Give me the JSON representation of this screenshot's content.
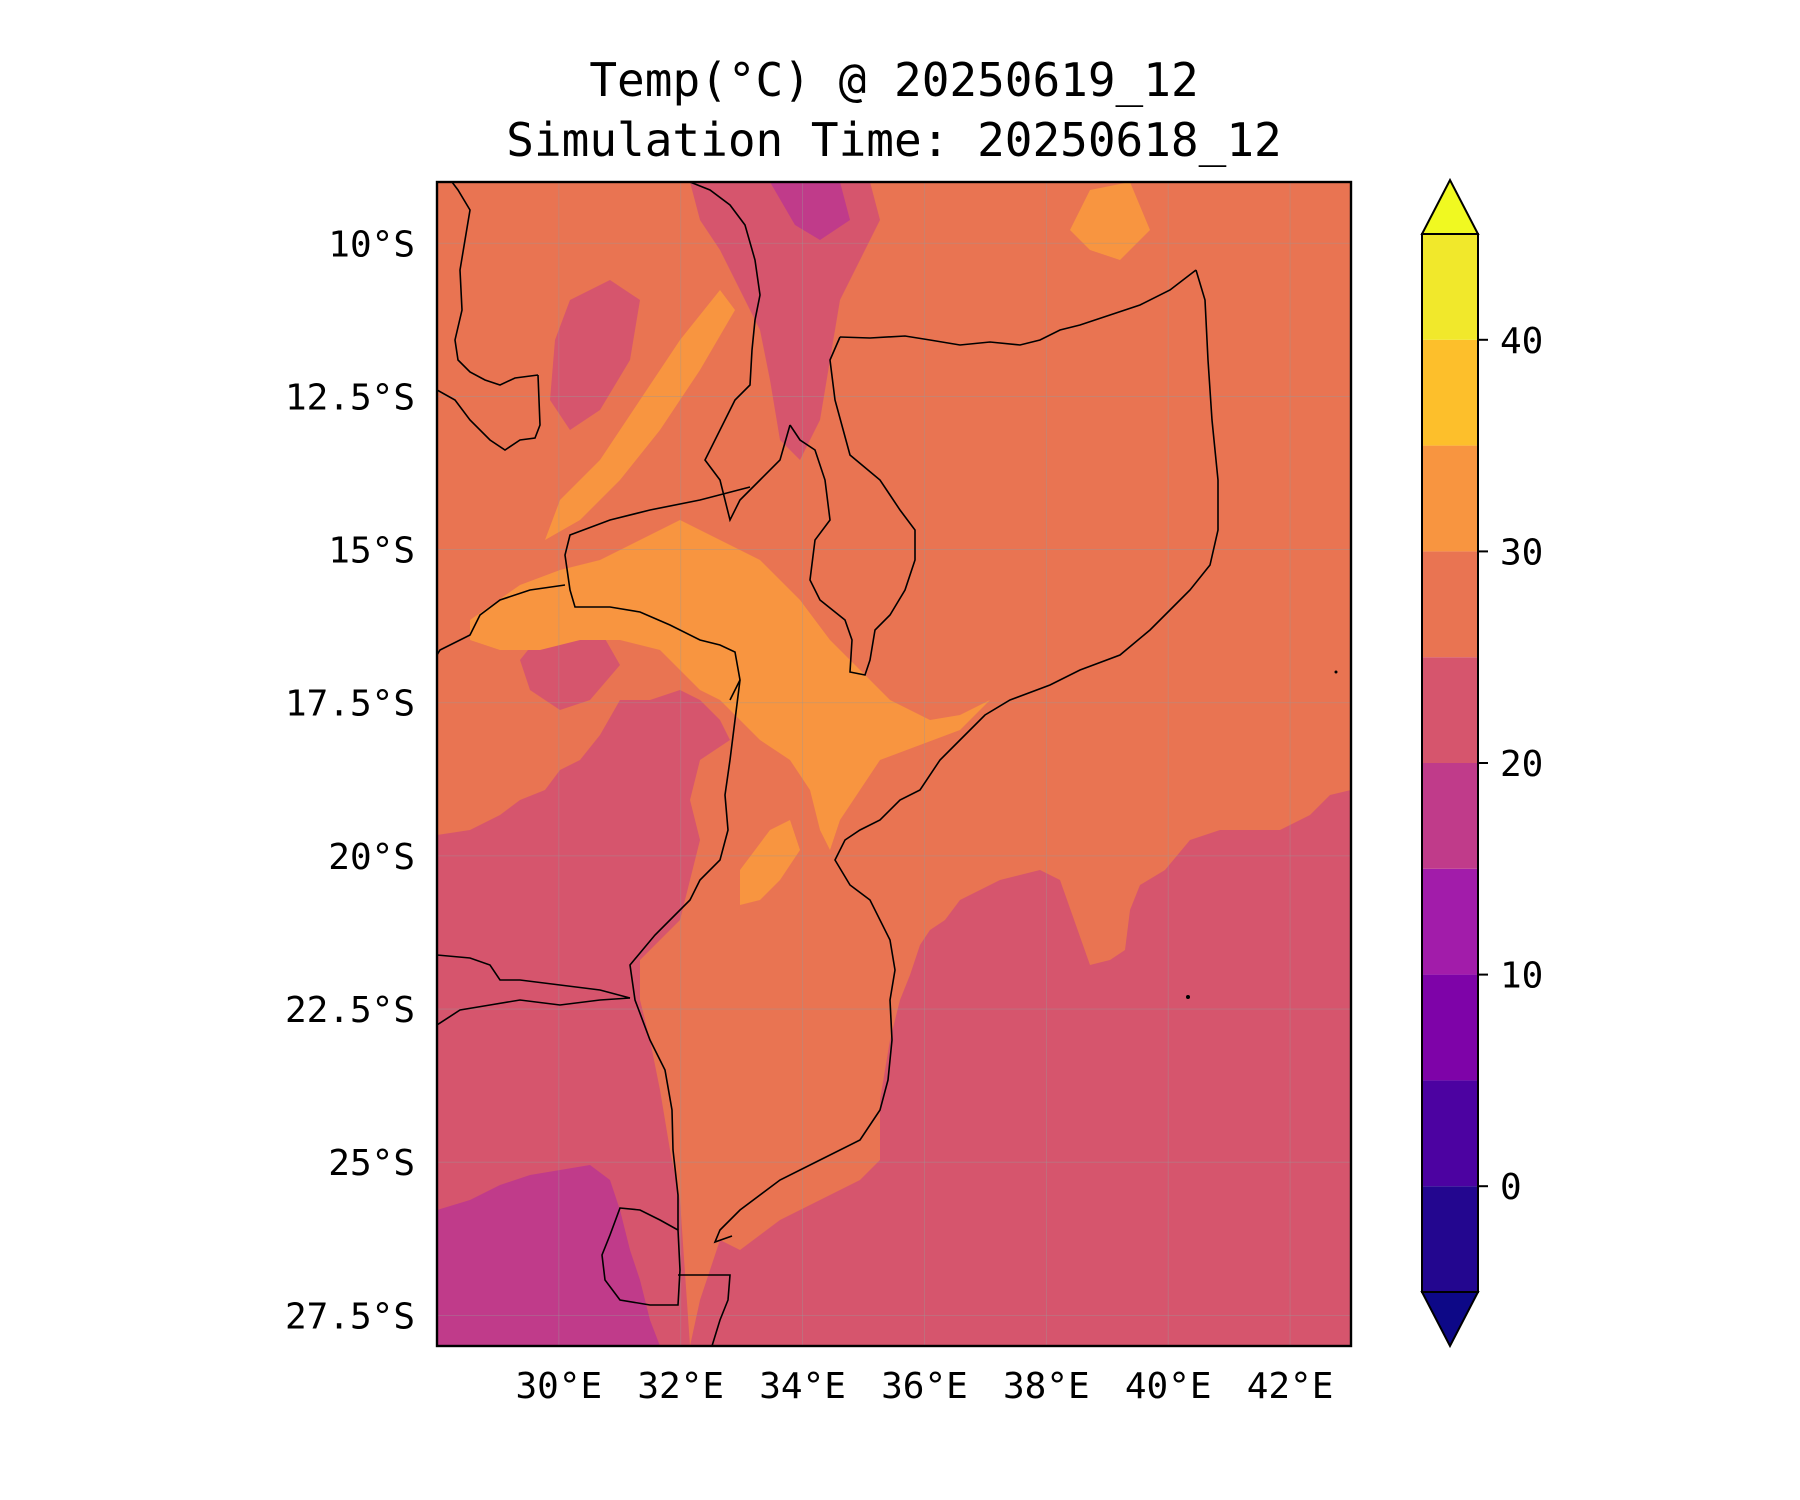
{
  "title": {
    "line1": "Temp(°C) @ 20250619_12",
    "line2": "Simulation Time: 20250618_12"
  },
  "map": {
    "lon_range": [
      28.0,
      43.0
    ],
    "lat_range": [
      -28.0,
      -9.0
    ],
    "x_ticks": [
      {
        "value": 30,
        "label": "30°E"
      },
      {
        "value": 32,
        "label": "32°E"
      },
      {
        "value": 34,
        "label": "34°E"
      },
      {
        "value": 36,
        "label": "36°E"
      },
      {
        "value": 38,
        "label": "38°E"
      },
      {
        "value": 40,
        "label": "40°E"
      },
      {
        "value": 42,
        "label": "42°E"
      }
    ],
    "y_ticks": [
      {
        "value": -10,
        "label": "10°S"
      },
      {
        "value": -12.5,
        "label": "12.5°S"
      },
      {
        "value": -15,
        "label": "15°S"
      },
      {
        "value": -17.5,
        "label": "17.5°S"
      },
      {
        "value": -20,
        "label": "20°S"
      },
      {
        "value": -22.5,
        "label": "22.5°S"
      },
      {
        "value": -25,
        "label": "25°S"
      },
      {
        "value": -27.5,
        "label": "27.5°S"
      }
    ],
    "gridlines": true,
    "variable": "Temperature (°C)",
    "colormap": "plasma"
  },
  "colorbar": {
    "range": [
      -5,
      45
    ],
    "extend": "both",
    "levels": [
      -5,
      0,
      5,
      10,
      15,
      20,
      25,
      30,
      35,
      40,
      45
    ],
    "colors": [
      "#23068f",
      "#4c02a1",
      "#7e03a8",
      "#a21caa",
      "#c03b8a",
      "#d6556d",
      "#e97452",
      "#f89540",
      "#fdbf2b",
      "#f1e82b"
    ],
    "under_color": "#0d0887",
    "over_color": "#f0f921",
    "ticks": [
      {
        "value": 0,
        "label": "0"
      },
      {
        "value": 10,
        "label": "10"
      },
      {
        "value": 20,
        "label": "20"
      },
      {
        "value": 30,
        "label": "30"
      },
      {
        "value": 40,
        "label": "40"
      }
    ]
  },
  "colors": {
    "ocean_south": "#d6556d",
    "land_warm": "#e97452",
    "hot": "#f89540",
    "cool": "#c03b8a",
    "border": "#000000"
  }
}
